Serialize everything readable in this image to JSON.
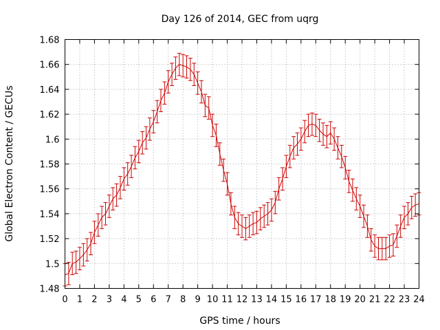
{
  "colors": {
    "series": "#cc0000",
    "grid": "#a0a0a0",
    "axes": "#000000",
    "background": "#ffffff"
  },
  "chart_data": {
    "type": "line",
    "title": "Day 126 of 2014, GEC from uqrg",
    "xlabel": "GPS time / hours",
    "ylabel": "Global Electron Content / GECUs",
    "xlim": [
      0,
      24
    ],
    "ylim": [
      1.48,
      1.68
    ],
    "xticks": [
      "0",
      "1",
      "2",
      "3",
      "4",
      "5",
      "6",
      "7",
      "8",
      "9",
      "10",
      "11",
      "12",
      "13",
      "14",
      "15",
      "16",
      "17",
      "18",
      "19",
      "20",
      "21",
      "22",
      "23",
      "24"
    ],
    "yticks": [
      "1.48",
      "1.5",
      "1.52",
      "1.54",
      "1.56",
      "1.58",
      "1.6",
      "1.62",
      "1.64",
      "1.66",
      "1.68"
    ],
    "grid": true,
    "legend": "none",
    "series": [
      {
        "error": 0.009,
        "x": [
          0,
          0.25,
          0.5,
          0.75,
          1,
          1.25,
          1.5,
          1.75,
          2,
          2.25,
          2.5,
          2.75,
          3,
          3.25,
          3.5,
          3.75,
          4,
          4.25,
          4.5,
          4.75,
          5,
          5.25,
          5.5,
          5.75,
          6,
          6.25,
          6.5,
          6.75,
          7,
          7.25,
          7.5,
          7.75,
          8,
          8.25,
          8.5,
          8.75,
          9,
          9.25,
          9.5,
          9.75,
          10,
          10.25,
          10.5,
          10.75,
          11,
          11.25,
          11.5,
          11.75,
          12,
          12.25,
          12.5,
          12.75,
          13,
          13.25,
          13.5,
          13.75,
          14,
          14.25,
          14.5,
          14.75,
          15,
          15.25,
          15.5,
          15.75,
          16,
          16.25,
          16.5,
          16.75,
          17,
          17.25,
          17.5,
          17.75,
          18,
          18.25,
          18.5,
          18.75,
          19,
          19.25,
          19.5,
          19.75,
          20,
          20.25,
          20.5,
          20.75,
          21,
          21.25,
          21.5,
          21.75,
          22,
          22.25,
          22.5,
          22.75,
          23,
          23.25,
          23.5,
          23.75,
          24
        ],
        "y": [
          1.491,
          1.492,
          1.5,
          1.501,
          1.504,
          1.507,
          1.511,
          1.516,
          1.525,
          1.531,
          1.537,
          1.54,
          1.546,
          1.552,
          1.555,
          1.561,
          1.568,
          1.572,
          1.578,
          1.585,
          1.59,
          1.597,
          1.601,
          1.608,
          1.614,
          1.622,
          1.631,
          1.637,
          1.646,
          1.652,
          1.657,
          1.66,
          1.659,
          1.658,
          1.656,
          1.652,
          1.645,
          1.638,
          1.627,
          1.625,
          1.611,
          1.603,
          1.588,
          1.575,
          1.564,
          1.548,
          1.537,
          1.532,
          1.53,
          1.528,
          1.53,
          1.532,
          1.533,
          1.536,
          1.538,
          1.54,
          1.543,
          1.549,
          1.56,
          1.568,
          1.578,
          1.586,
          1.593,
          1.596,
          1.6,
          1.606,
          1.611,
          1.612,
          1.611,
          1.607,
          1.604,
          1.602,
          1.605,
          1.6,
          1.593,
          1.586,
          1.577,
          1.566,
          1.559,
          1.552,
          1.546,
          1.538,
          1.53,
          1.519,
          1.514,
          1.512,
          1.512,
          1.512,
          1.514,
          1.515,
          1.522,
          1.53,
          1.537,
          1.54,
          1.545,
          1.547,
          1.548
        ]
      }
    ]
  }
}
